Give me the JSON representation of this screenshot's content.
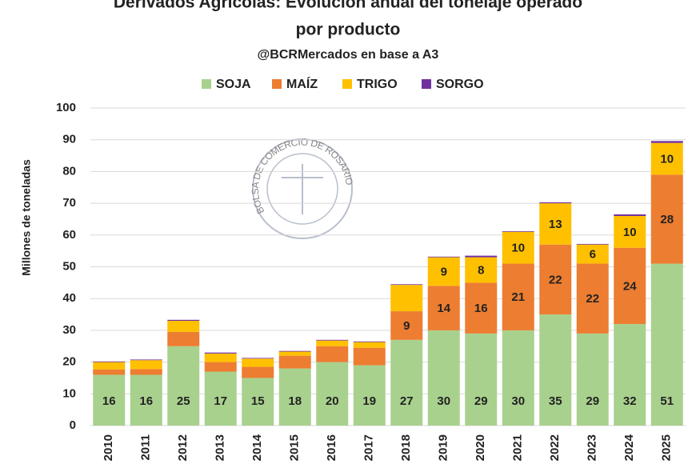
{
  "chart_data": {
    "type": "stacked_bar",
    "title": [
      "Derivados Agrícolas: Evolución anual del tonelaje operado",
      "por producto"
    ],
    "subtitle": "@BCRMercados en base a A3",
    "watermark": "BOLSA DE COMERCIO DE ROSARIO",
    "y_label": "Millones de toneladas",
    "categories": [
      "2010",
      "2011",
      "2012",
      "2013",
      "2014",
      "2015",
      "2016",
      "2017",
      "2018",
      "2019",
      "2020",
      "2021",
      "2022",
      "2023",
      "2024",
      "2025"
    ],
    "series": [
      {
        "name": "SOJA",
        "color": "#a9d18e",
        "values": [
          16,
          16,
          25,
          17,
          15,
          18,
          20,
          19,
          27,
          30,
          29,
          30,
          35,
          29,
          32,
          51
        ],
        "value_labels": [
          "16",
          "16",
          "25",
          "17",
          "15",
          "18",
          "20",
          "19",
          "27",
          "30",
          "29",
          "30",
          "35",
          "29",
          "32",
          "51"
        ]
      },
      {
        "name": "MAÍZ",
        "color": "#ed7d31",
        "values": [
          1.7,
          1.8,
          4.5,
          3,
          3.5,
          4,
          5,
          5.5,
          9,
          14,
          16,
          21,
          22,
          22,
          24,
          28
        ],
        "value_labels": [
          null,
          null,
          null,
          null,
          null,
          null,
          null,
          null,
          "9",
          "14",
          "16",
          "21",
          "22",
          "22",
          "24",
          "28"
        ]
      },
      {
        "name": "TRIGO",
        "color": "#ffc000",
        "values": [
          2.3,
          2.8,
          3.5,
          2.7,
          2.6,
          1.3,
          1.8,
          1.8,
          8.3,
          9,
          8,
          10,
          13,
          6,
          10,
          10
        ],
        "value_labels": [
          null,
          null,
          null,
          null,
          null,
          null,
          null,
          null,
          null,
          "9",
          "8",
          "10",
          "13",
          "6",
          "10",
          "10"
        ]
      },
      {
        "name": "SORGO",
        "color": "#7030a0",
        "values": [
          0.2,
          0.2,
          0.3,
          0.3,
          0.2,
          0.2,
          0.2,
          0.2,
          0.2,
          0.2,
          0.5,
          0.2,
          0.3,
          0.2,
          0.5,
          0.6
        ]
      }
    ],
    "ylim": [
      0,
      100
    ],
    "yticks": [
      0,
      10,
      20,
      30,
      40,
      50,
      60,
      70,
      80,
      90,
      100
    ],
    "grid": true
  }
}
